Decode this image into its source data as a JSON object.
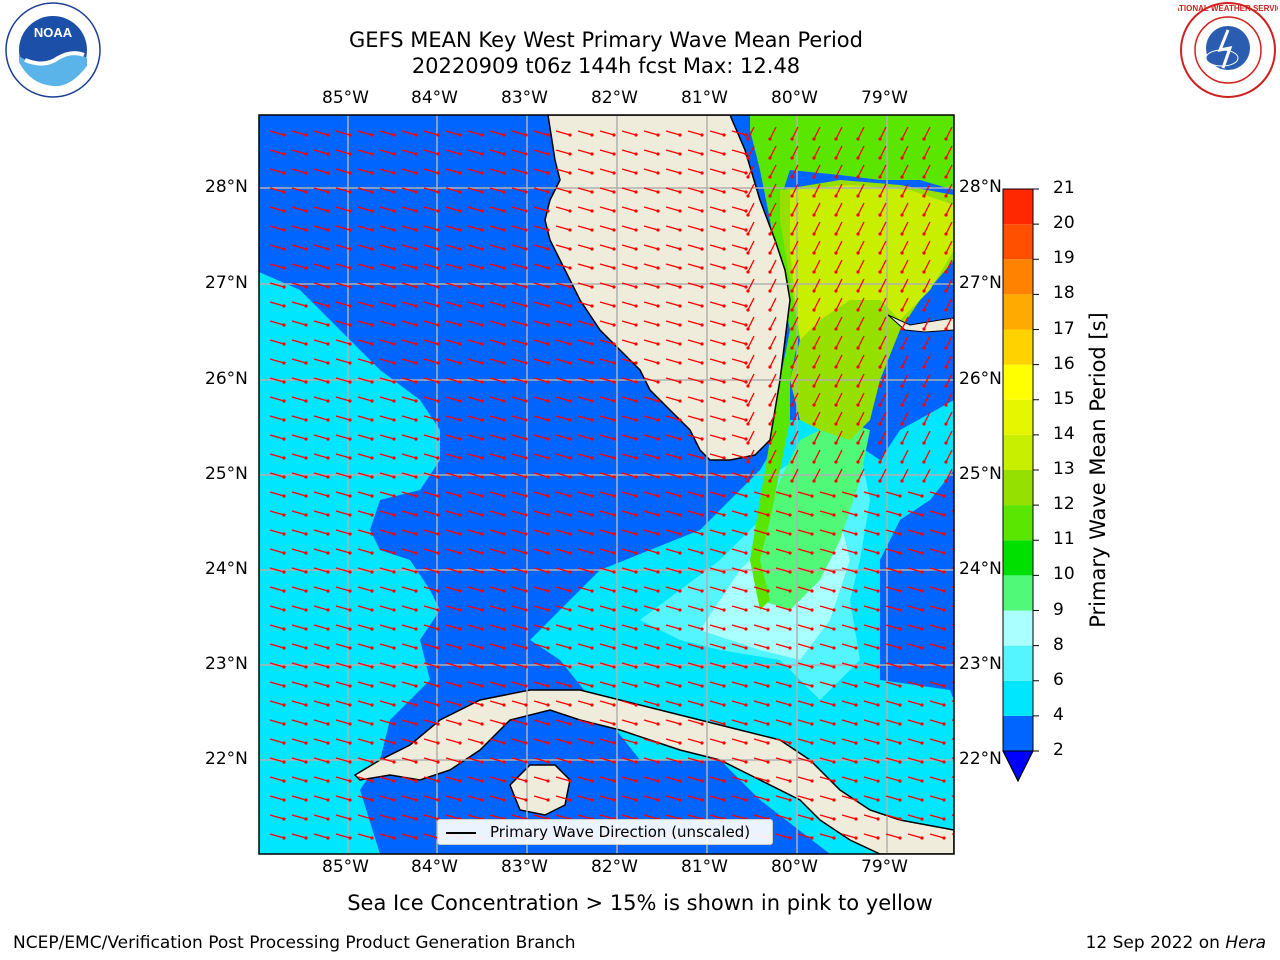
{
  "header": {
    "title_line1": "GEFS MEAN Key West Primary Wave Mean Period",
    "title_line2": "20220909 t06z 144h fcst   Max: 12.48"
  },
  "axes": {
    "lon_ticks": [
      "85°W",
      "84°W",
      "83°W",
      "82°W",
      "81°W",
      "80°W",
      "79°W"
    ],
    "lat_ticks": [
      "28°N",
      "27°N",
      "26°N",
      "25°N",
      "24°N",
      "23°N",
      "22°N"
    ]
  },
  "colorbar": {
    "title": "Primary Wave Mean Period [s]",
    "ticks": [
      "2",
      "4",
      "6",
      "8",
      "9",
      "10",
      "11",
      "12",
      "13",
      "14",
      "15",
      "16",
      "17",
      "18",
      "19",
      "20",
      "21"
    ],
    "colors": [
      "#0064ff",
      "#00e6ff",
      "#55f5ff",
      "#aaffff",
      "#50fa78",
      "#00e000",
      "#5ae600",
      "#96e000",
      "#c8ee00",
      "#e6f500",
      "#ffff00",
      "#ffd200",
      "#ffaa00",
      "#ff8200",
      "#ff5000",
      "#ff2800"
    ],
    "under_color": "#0000ff"
  },
  "legend": {
    "label": "Primary Wave Direction (unscaled)"
  },
  "footer": {
    "note": "Sea Ice Concentration > 15% is shown in pink to yellow",
    "left": "NCEP/EMC/Verification Post Processing Product Generation Branch",
    "right_date": "12 Sep 2022 on ",
    "right_host": "Hera"
  },
  "logos": {
    "noaa": "NOAA",
    "nws": "NATIONAL WEATHER SERVICE"
  },
  "colors": {
    "land": "#efecdb",
    "grid": "#b0b0b0",
    "arrow": "#ff0000",
    "coast": "#000000"
  }
}
